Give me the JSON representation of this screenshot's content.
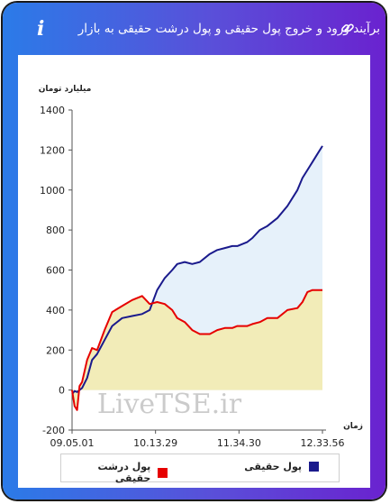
{
  "header": {
    "title": "برآیند ورود و خروج پول حقیقی و پول درشت حقیقی به بازار",
    "info_glyph": "i"
  },
  "watermark": "LiveTSE.ir",
  "colors": {
    "real_money": "#1a1a8c",
    "big_real_money": "#e60000",
    "real_money_fill": "#e6f1fa",
    "big_real_money_fill": "#f2ecb8"
  },
  "chart_data": {
    "type": "area",
    "ylabel": "میلیارد تومان",
    "xlabel": "زمان",
    "ylim": [
      -200,
      1400
    ],
    "yticks": [
      -200,
      0,
      200,
      400,
      600,
      800,
      1000,
      1200,
      1400
    ],
    "xticks": [
      "09.05.01",
      "10.13.29",
      "11.34.30",
      "12.33.56"
    ],
    "grid": false,
    "legend_position": "bottom",
    "x": [
      0,
      0.01,
      0.02,
      0.03,
      0.04,
      0.06,
      0.08,
      0.1,
      0.13,
      0.16,
      0.2,
      0.24,
      0.28,
      0.31,
      0.34,
      0.37,
      0.4,
      0.42,
      0.45,
      0.48,
      0.51,
      0.55,
      0.58,
      0.61,
      0.64,
      0.66,
      0.7,
      0.72,
      0.75,
      0.78,
      0.82,
      0.86,
      0.9,
      0.92,
      0.94,
      0.96,
      0.98,
      1.0
    ],
    "series": [
      {
        "name": "پول حقیقی",
        "values": [
          -20,
          -5,
          -10,
          0,
          10,
          60,
          150,
          180,
          250,
          320,
          360,
          370,
          380,
          400,
          500,
          560,
          600,
          630,
          640,
          630,
          640,
          680,
          700,
          710,
          720,
          720,
          740,
          760,
          800,
          820,
          860,
          920,
          1000,
          1060,
          1100,
          1140,
          1180,
          1220
        ]
      },
      {
        "name": "پول درشت حقیقی",
        "values": [
          0,
          -80,
          -100,
          20,
          40,
          150,
          210,
          200,
          300,
          390,
          420,
          450,
          470,
          430,
          440,
          430,
          400,
          360,
          340,
          300,
          280,
          280,
          300,
          310,
          310,
          320,
          320,
          330,
          340,
          360,
          360,
          400,
          410,
          440,
          490,
          500,
          500,
          500
        ]
      }
    ]
  }
}
